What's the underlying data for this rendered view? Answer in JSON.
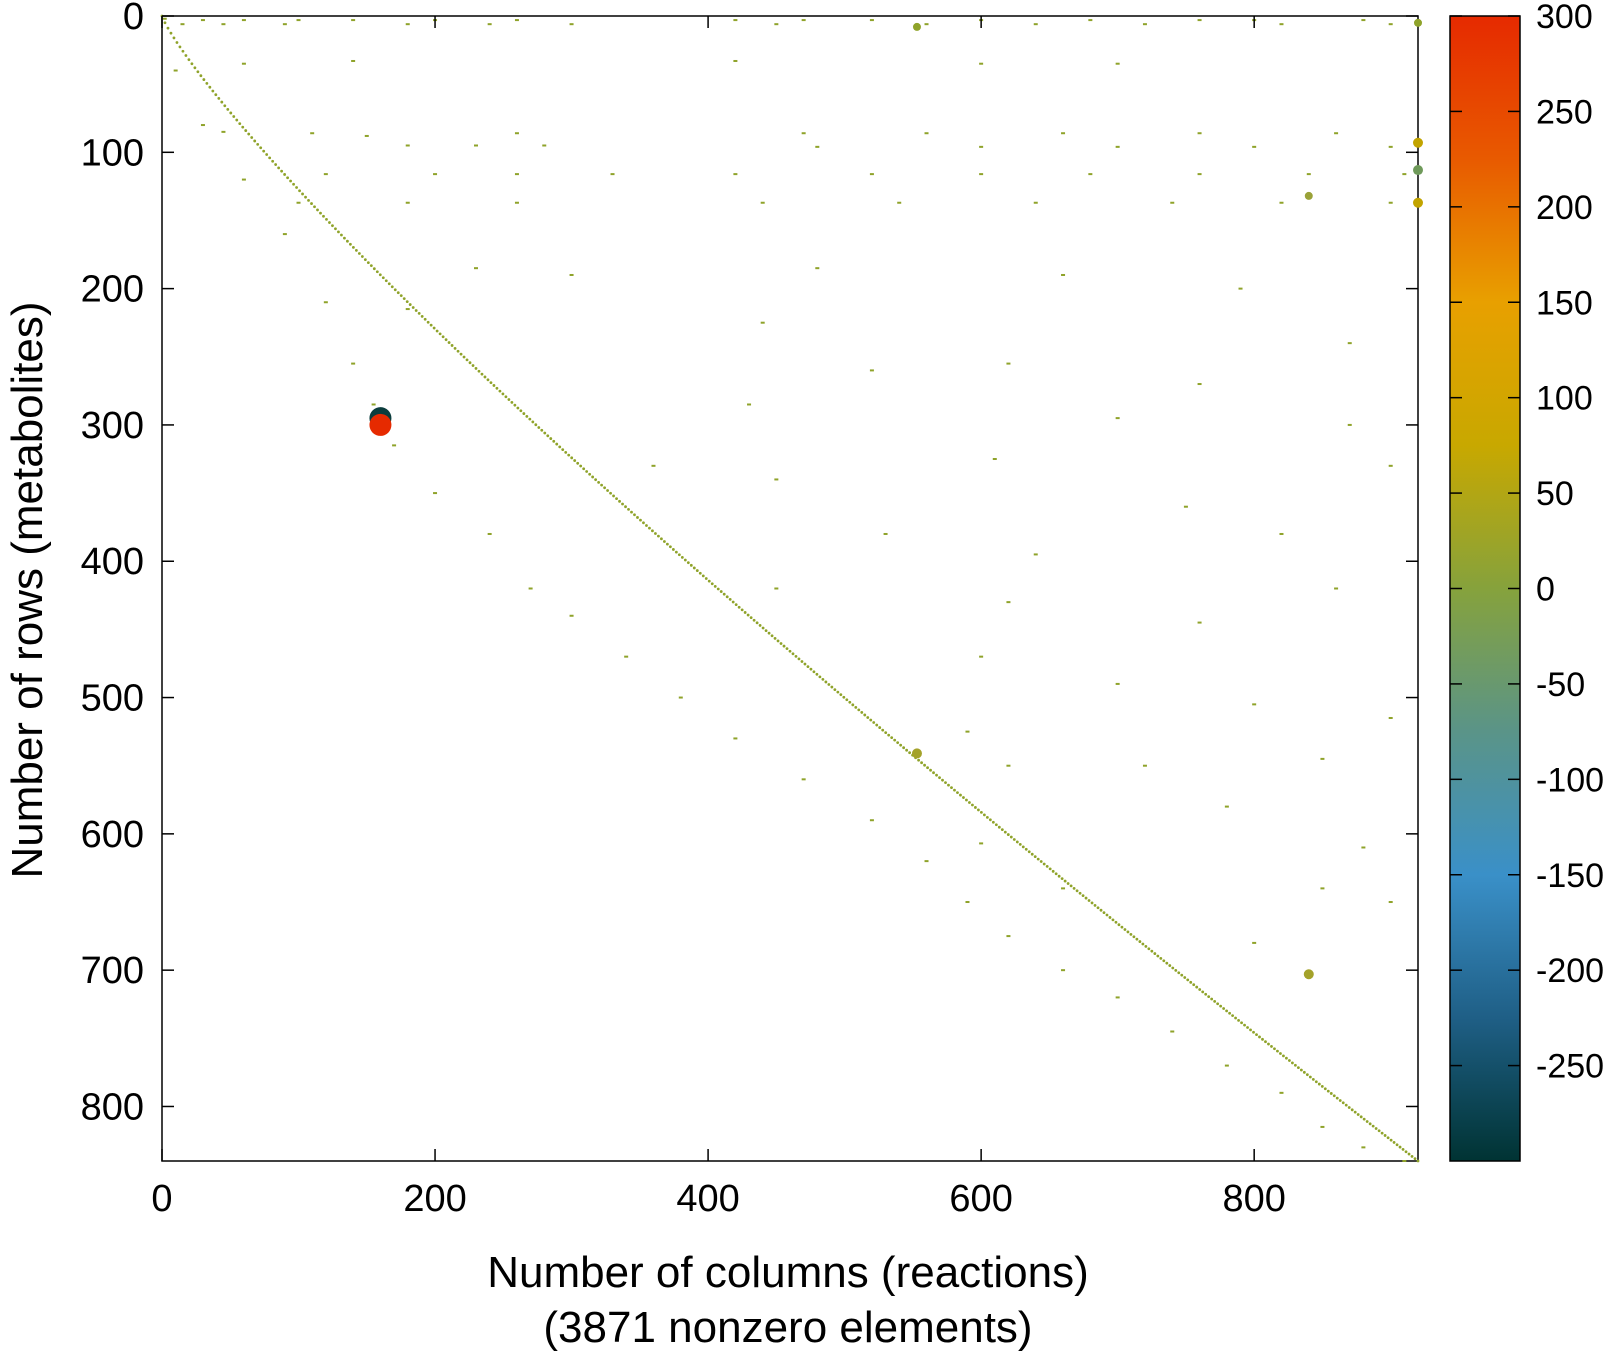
{
  "chart_data": {
    "type": "scatter",
    "title": "",
    "xlabel": "Number of columns (reactions)",
    "xlabel_sub": "(3871 nonzero elements)",
    "ylabel": "Number of rows (metabolites)",
    "xlim": [
      0,
      920
    ],
    "ylim": [
      0,
      840
    ],
    "y_inverted": true,
    "grid": false,
    "x_ticks": [
      "0",
      "200",
      "400",
      "600",
      "800"
    ],
    "y_ticks": [
      "0",
      "100",
      "200",
      "300",
      "400",
      "500",
      "600",
      "700",
      "800"
    ],
    "colorbar": {
      "range": [
        -300,
        300
      ],
      "ticks": [
        "300",
        "250",
        "200",
        "150",
        "100",
        "50",
        "0",
        "-50",
        "-100",
        "-150",
        "-200",
        "-250"
      ],
      "colors": [
        "#003333",
        "#1f5f86",
        "#3a90c8",
        "#5a9488",
        "#86a23c",
        "#c8a800",
        "#e8a000",
        "#e85a00",
        "#e62a00"
      ]
    },
    "series": [
      {
        "values": [
          [
            2,
            2
          ],
          [
            30,
            3
          ],
          [
            60,
            3
          ],
          [
            100,
            3
          ],
          [
            140,
            3
          ],
          [
            200,
            3
          ],
          [
            260,
            3
          ],
          [
            420,
            3
          ],
          [
            470,
            3
          ],
          [
            520,
            3
          ],
          [
            600,
            3
          ],
          [
            680,
            3
          ],
          [
            760,
            3
          ],
          [
            800,
            3
          ],
          [
            880,
            3
          ],
          [
            15,
            6
          ],
          [
            45,
            6
          ],
          [
            90,
            6
          ],
          [
            180,
            6
          ],
          [
            240,
            6
          ],
          [
            300,
            6
          ],
          [
            450,
            6
          ],
          [
            560,
            6
          ],
          [
            640,
            6
          ],
          [
            720,
            6
          ],
          [
            820,
            6
          ],
          [
            900,
            6
          ],
          [
            60,
            35
          ],
          [
            140,
            33
          ],
          [
            420,
            33
          ],
          [
            600,
            35
          ],
          [
            700,
            35
          ],
          [
            45,
            85
          ],
          [
            110,
            86
          ],
          [
            150,
            88
          ],
          [
            260,
            86
          ],
          [
            470,
            86
          ],
          [
            560,
            86
          ],
          [
            660,
            86
          ],
          [
            760,
            86
          ],
          [
            860,
            86
          ],
          [
            180,
            95
          ],
          [
            230,
            95
          ],
          [
            280,
            95
          ],
          [
            480,
            96
          ],
          [
            600,
            96
          ],
          [
            700,
            96
          ],
          [
            800,
            96
          ],
          [
            900,
            96
          ],
          [
            120,
            116
          ],
          [
            200,
            116
          ],
          [
            260,
            116
          ],
          [
            330,
            116
          ],
          [
            420,
            116
          ],
          [
            520,
            116
          ],
          [
            600,
            116
          ],
          [
            680,
            116
          ],
          [
            760,
            116
          ],
          [
            840,
            116
          ],
          [
            910,
            116
          ],
          [
            100,
            137
          ],
          [
            180,
            137
          ],
          [
            260,
            137
          ],
          [
            440,
            137
          ],
          [
            540,
            137
          ],
          [
            640,
            137
          ],
          [
            740,
            137
          ],
          [
            820,
            137
          ],
          [
            900,
            137
          ],
          [
            230,
            185
          ],
          [
            300,
            190
          ],
          [
            480,
            185
          ],
          [
            660,
            190
          ],
          [
            790,
            200
          ],
          [
            180,
            215
          ],
          [
            440,
            225
          ],
          [
            620,
            255
          ],
          [
            760,
            270
          ],
          [
            870,
            240
          ],
          [
            520,
            260
          ],
          [
            430,
            285
          ],
          [
            700,
            295
          ],
          [
            870,
            300
          ],
          [
            360,
            330
          ],
          [
            610,
            325
          ],
          [
            450,
            340
          ],
          [
            900,
            330
          ],
          [
            750,
            360
          ],
          [
            530,
            380
          ],
          [
            820,
            380
          ],
          [
            640,
            395
          ],
          [
            450,
            420
          ],
          [
            620,
            430
          ],
          [
            760,
            445
          ],
          [
            860,
            420
          ],
          [
            600,
            470
          ],
          [
            700,
            490
          ],
          [
            800,
            505
          ],
          [
            900,
            515
          ],
          [
            590,
            525
          ],
          [
            620,
            550
          ],
          [
            720,
            550
          ],
          [
            850,
            545
          ],
          [
            600,
            607
          ],
          [
            780,
            580
          ],
          [
            660,
            640
          ],
          [
            880,
            610
          ],
          [
            850,
            640
          ],
          [
            900,
            650
          ],
          [
            800,
            680
          ],
          [
            10,
            40
          ],
          [
            30,
            80
          ],
          [
            60,
            120
          ],
          [
            90,
            160
          ],
          [
            120,
            210
          ],
          [
            140,
            255
          ],
          [
            155,
            285
          ],
          [
            170,
            315
          ],
          [
            200,
            350
          ],
          [
            240,
            380
          ],
          [
            270,
            420
          ],
          [
            300,
            440
          ],
          [
            340,
            470
          ],
          [
            380,
            500
          ],
          [
            420,
            530
          ],
          [
            470,
            560
          ],
          [
            520,
            590
          ],
          [
            560,
            620
          ],
          [
            590,
            650
          ],
          [
            620,
            675
          ],
          [
            660,
            700
          ],
          [
            700,
            720
          ],
          [
            740,
            745
          ],
          [
            780,
            770
          ],
          [
            820,
            790
          ],
          [
            850,
            815
          ],
          [
            880,
            830
          ],
          [
            910,
            840
          ]
        ],
        "color": "#8fa32a"
      }
    ],
    "highlights": [
      {
        "x": 160,
        "y": 295,
        "value": -300,
        "color": "#0b3d3d"
      },
      {
        "x": 160,
        "y": 300,
        "value": 300,
        "color": "#e62a00"
      },
      {
        "x": 553,
        "y": 8,
        "value": 0,
        "color": "#8fa32a"
      },
      {
        "x": 840,
        "y": 132,
        "value": 0,
        "color": "#9aa238"
      },
      {
        "x": 840,
        "y": 703,
        "value": 50,
        "color": "#a4a22a"
      },
      {
        "x": 553,
        "y": 541,
        "value": 50,
        "color": "#a4a22a"
      },
      {
        "x": 920,
        "y": 5,
        "value": 0,
        "color": "#8fa32a"
      },
      {
        "x": 920,
        "y": 93,
        "value": 100,
        "color": "#c2a400"
      },
      {
        "x": 920,
        "y": 113,
        "value": -50,
        "color": "#6f9a5a"
      },
      {
        "x": 920,
        "y": 137,
        "value": 100,
        "color": "#c2a400"
      }
    ]
  }
}
